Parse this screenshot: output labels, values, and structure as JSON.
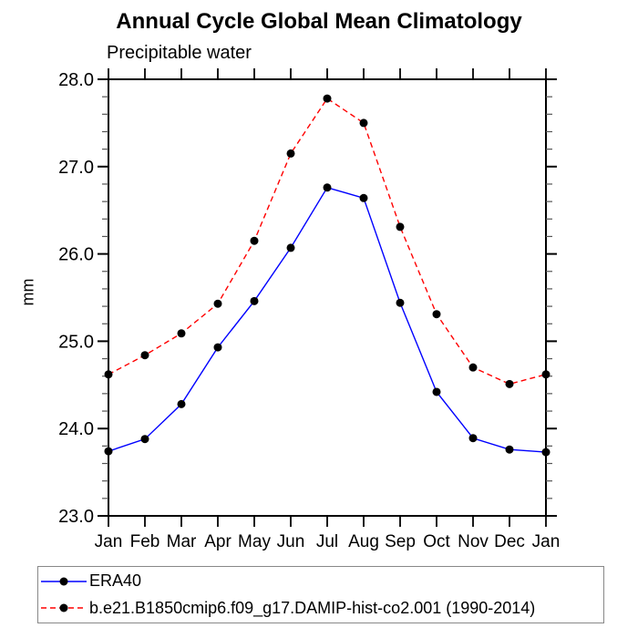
{
  "chart_data": {
    "type": "line",
    "title": "Annual Cycle Global Mean Climatology",
    "subtitle": "Precipitable water",
    "ylabel": "mm",
    "xlabel": "",
    "categories": [
      "Jan",
      "Feb",
      "Mar",
      "Apr",
      "May",
      "Jun",
      "Jul",
      "Aug",
      "Sep",
      "Oct",
      "Nov",
      "Dec",
      "Jan"
    ],
    "ylim": [
      23.0,
      28.0
    ],
    "ytick_step": 1.0,
    "yminor_step": 0.2,
    "ytick_labels": [
      "23.0",
      "24.0",
      "25.0",
      "26.0",
      "27.0",
      "28.0"
    ],
    "grid": false,
    "legend_position": "bottom",
    "axis_color": "#000000",
    "marker_color": "#000000",
    "series": [
      {
        "name": "ERA40",
        "color": "#0000ff",
        "line_style": "solid",
        "marker": "circle",
        "values": [
          23.74,
          23.88,
          24.28,
          24.93,
          25.46,
          26.07,
          26.76,
          26.64,
          25.44,
          24.42,
          23.89,
          23.76,
          23.73
        ]
      },
      {
        "name": "b.e21.B1850cmip6.f09_g17.DAMIP-hist-co2.001 (1990-2014)",
        "color": "#ff0000",
        "line_style": "dashed",
        "marker": "circle",
        "values": [
          24.62,
          24.84,
          25.09,
          25.43,
          26.15,
          27.15,
          27.78,
          27.5,
          26.31,
          25.31,
          24.7,
          24.51,
          24.62
        ]
      }
    ]
  }
}
